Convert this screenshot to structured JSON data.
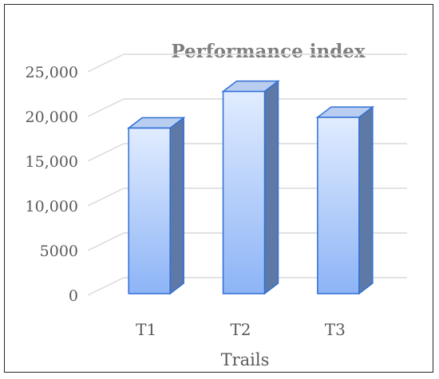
{
  "chart_data": {
    "type": "bar",
    "style": "3d-clustered-column",
    "title": "Performance index",
    "xlabel": "Trails",
    "ylabel": "",
    "categories": [
      "T1",
      "T2",
      "T3"
    ],
    "values": [
      17900,
      22000,
      19100
    ],
    "ylim": [
      0,
      25000
    ],
    "yticks": [
      0,
      5000,
      10000,
      15000,
      20000,
      25000
    ],
    "ytick_labels": [
      "0",
      "5000",
      "10,000",
      "15,000",
      "20,000",
      "25,000"
    ],
    "grid": true,
    "legend": "none"
  },
  "colors": {
    "bar_front_top": "#e1ecff",
    "bar_front_bottom": "#8db4f6",
    "bar_side": "#5f79a6",
    "bar_top": "#b9cdf0",
    "bar_edge": "#2f6fd6",
    "grid": "#d9d9d9",
    "text": "#595959",
    "title": "#7f7f7f"
  }
}
